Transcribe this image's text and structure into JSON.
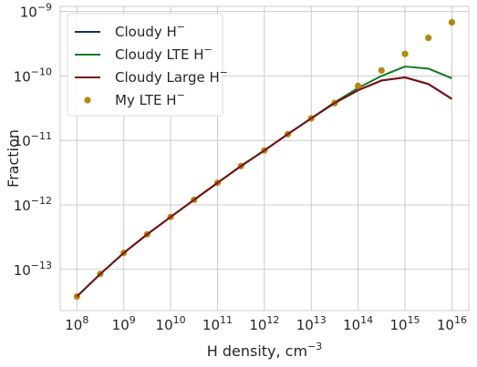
{
  "chart_data": {
    "type": "line",
    "xlabel": "H density, cm",
    "xlabel_sup": "−3",
    "ylabel": "Fraction",
    "x_scale": "log",
    "y_scale": "log",
    "xlim": [
      44000000.0,
      2.3e+16
    ],
    "ylim": [
      2.3e-14,
      1.2e-09
    ],
    "grid": true,
    "legend_position": "top-left",
    "x_ticks": [
      {
        "value": 100000000.0,
        "base": "10",
        "exp": "8"
      },
      {
        "value": 1000000000.0,
        "base": "10",
        "exp": "9"
      },
      {
        "value": 10000000000.0,
        "base": "10",
        "exp": "10"
      },
      {
        "value": 100000000000.0,
        "base": "10",
        "exp": "11"
      },
      {
        "value": 1000000000000.0,
        "base": "10",
        "exp": "12"
      },
      {
        "value": 10000000000000.0,
        "base": "10",
        "exp": "13"
      },
      {
        "value": 100000000000000.0,
        "base": "10",
        "exp": "14"
      },
      {
        "value": 1000000000000000.0,
        "base": "10",
        "exp": "15"
      },
      {
        "value": 1e+16,
        "base": "10",
        "exp": "16"
      }
    ],
    "y_ticks": [
      {
        "value": 1e-13,
        "base": "10",
        "exp": "−13"
      },
      {
        "value": 1e-12,
        "base": "10",
        "exp": "−12"
      },
      {
        "value": 1e-11,
        "base": "10",
        "exp": "−11"
      },
      {
        "value": 1e-10,
        "base": "10",
        "exp": "−10"
      },
      {
        "value": 1e-09,
        "base": "10",
        "exp": "−9"
      }
    ],
    "x": [
      100000000.0,
      316000000.0,
      1000000000.0,
      3160000000.0,
      10000000000.0,
      31600000000.0,
      100000000000.0,
      316000000000.0,
      1000000000000.0,
      3160000000000.0,
      10000000000000.0,
      31600000000000.0,
      100000000000000.0,
      316000000000000.0,
      1000000000000000.0,
      3160000000000000.0,
      1e+16
    ],
    "series": [
      {
        "name": "Cloudy H",
        "name_sup": "−",
        "kind": "line",
        "color": "#1f2a6b",
        "values": [
          3.8e-14,
          8.5e-14,
          1.8e-13,
          3.5e-13,
          6.5e-13,
          1.2e-12,
          2.2e-12,
          4e-12,
          7e-12,
          1.25e-11,
          2.2e-11,
          3.8e-11,
          6e-11,
          8.5e-11,
          9.5e-11,
          7.5e-11,
          4.4e-11
        ]
      },
      {
        "name": "Cloudy LTE H",
        "name_sup": "−",
        "kind": "line",
        "color": "#0f7a22",
        "values": [
          3.8e-14,
          8.5e-14,
          1.8e-13,
          3.5e-13,
          6.5e-13,
          1.2e-12,
          2.2e-12,
          4e-12,
          7e-12,
          1.25e-11,
          2.2e-11,
          3.9e-11,
          6.5e-11,
          1e-10,
          1.4e-10,
          1.3e-10,
          9.2e-11
        ]
      },
      {
        "name": "Cloudy Large H",
        "name_sup": "−",
        "kind": "line",
        "color": "#7a1010",
        "values": [
          3.8e-14,
          8.5e-14,
          1.8e-13,
          3.5e-13,
          6.5e-13,
          1.2e-12,
          2.2e-12,
          4e-12,
          7e-12,
          1.25e-11,
          2.2e-11,
          3.8e-11,
          6e-11,
          8.5e-11,
          9.5e-11,
          7.5e-11,
          4.4e-11
        ]
      },
      {
        "name": "My LTE H",
        "name_sup": "−",
        "kind": "scatter",
        "color": "#b8860b",
        "values": [
          3.8e-14,
          8.5e-14,
          1.8e-13,
          3.5e-13,
          6.5e-13,
          1.2e-12,
          2.2e-12,
          4e-12,
          7e-12,
          1.25e-11,
          2.2e-11,
          3.8e-11,
          7e-11,
          1.22e-10,
          2.2e-10,
          3.9e-10,
          6.8e-10
        ]
      }
    ]
  }
}
